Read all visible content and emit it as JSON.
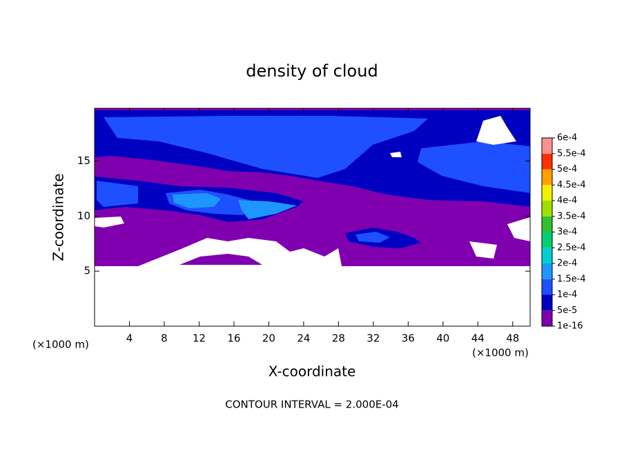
{
  "chart_data": {
    "type": "contour",
    "title": "density of cloud",
    "xlabel": "X-coordinate",
    "ylabel": "Z-coordinate",
    "x_unit": "(×1000 m)",
    "y_unit": "(×1000 m)",
    "footnote": "CONTOUR INTERVAL = 2.000E-04",
    "xlim": [
      0,
      50
    ],
    "xticks": [
      4,
      8,
      12,
      16,
      20,
      24,
      28,
      32,
      36,
      40,
      44,
      48
    ],
    "ylim": [
      0,
      19.8
    ],
    "yticks": [
      5,
      10,
      15
    ],
    "colorbar": {
      "ticks": [
        {
          "value": 1e-16,
          "label": "1e-16"
        },
        {
          "value": 5e-05,
          "label": "5e-5"
        },
        {
          "value": 0.0001,
          "label": "1e-4"
        },
        {
          "value": 0.00015,
          "label": "1.5e-4"
        },
        {
          "value": 0.0002,
          "label": "2e-4"
        },
        {
          "value": 0.00025,
          "label": "2.5e-4"
        },
        {
          "value": 0.0003,
          "label": "3e-4"
        },
        {
          "value": 0.00035,
          "label": "3.5e-4"
        },
        {
          "value": 0.0004,
          "label": "4e-4"
        },
        {
          "value": 0.00045,
          "label": "4.5e-4"
        },
        {
          "value": 0.0005,
          "label": "5e-4"
        },
        {
          "value": 0.00055,
          "label": "5.5e-4"
        },
        {
          "value": 0.0006,
          "label": "6e-4"
        }
      ],
      "colors": [
        "#8000b0",
        "#0000c0",
        "#1e50ff",
        "#1e96ff",
        "#00d0d0",
        "#00d070",
        "#30c030",
        "#a0e000",
        "#f0f000",
        "#ffa000",
        "#ff3000",
        "#ff9090"
      ]
    }
  }
}
